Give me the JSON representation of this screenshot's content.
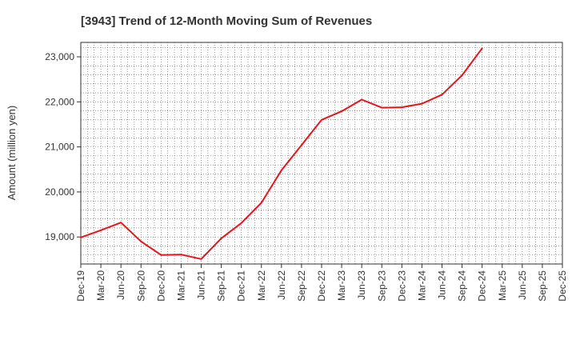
{
  "chart_data": {
    "type": "line",
    "title": "[3943]  Trend of 12-Month Moving Sum of Revenues",
    "ylabel": "Amount (million yen)",
    "xlabel": "",
    "x_tick_labels": [
      "Dec-19",
      "Mar-20",
      "Jun-20",
      "Sep-20",
      "Dec-20",
      "Mar-21",
      "Jun-21",
      "Sep-21",
      "Dec-21",
      "Mar-22",
      "Jun-22",
      "Sep-22",
      "Dec-22",
      "Mar-23",
      "Jun-23",
      "Sep-23",
      "Dec-23",
      "Mar-24",
      "Jun-24",
      "Sep-24",
      "Dec-24",
      "Mar-25",
      "Jun-25",
      "Sep-25",
      "Dec-25"
    ],
    "y_ticks": [
      19000,
      20000,
      21000,
      22000,
      23000
    ],
    "y_tick_labels": [
      "19,000",
      "20,000",
      "21,000",
      "22,000",
      "23,000"
    ],
    "ylim": [
      18400,
      23320
    ],
    "grid": true,
    "series": [
      {
        "color": "#e8141b",
        "x": [
          "Dec-19",
          "Mar-20",
          "Jun-20",
          "Sep-20",
          "Dec-20",
          "Mar-21",
          "Jun-21",
          "Sep-21",
          "Dec-21",
          "Mar-22",
          "Jun-22",
          "Sep-22",
          "Dec-22",
          "Mar-23",
          "Jun-23",
          "Sep-23",
          "Dec-23",
          "Mar-24",
          "Jun-24",
          "Sep-24",
          "Dec-24"
        ],
        "values": [
          18990,
          19150,
          19320,
          18900,
          18600,
          18610,
          18510,
          18970,
          19310,
          19760,
          20480,
          21040,
          21600,
          21790,
          22050,
          21870,
          21880,
          21960,
          22160,
          22590,
          23190
        ]
      }
    ]
  }
}
